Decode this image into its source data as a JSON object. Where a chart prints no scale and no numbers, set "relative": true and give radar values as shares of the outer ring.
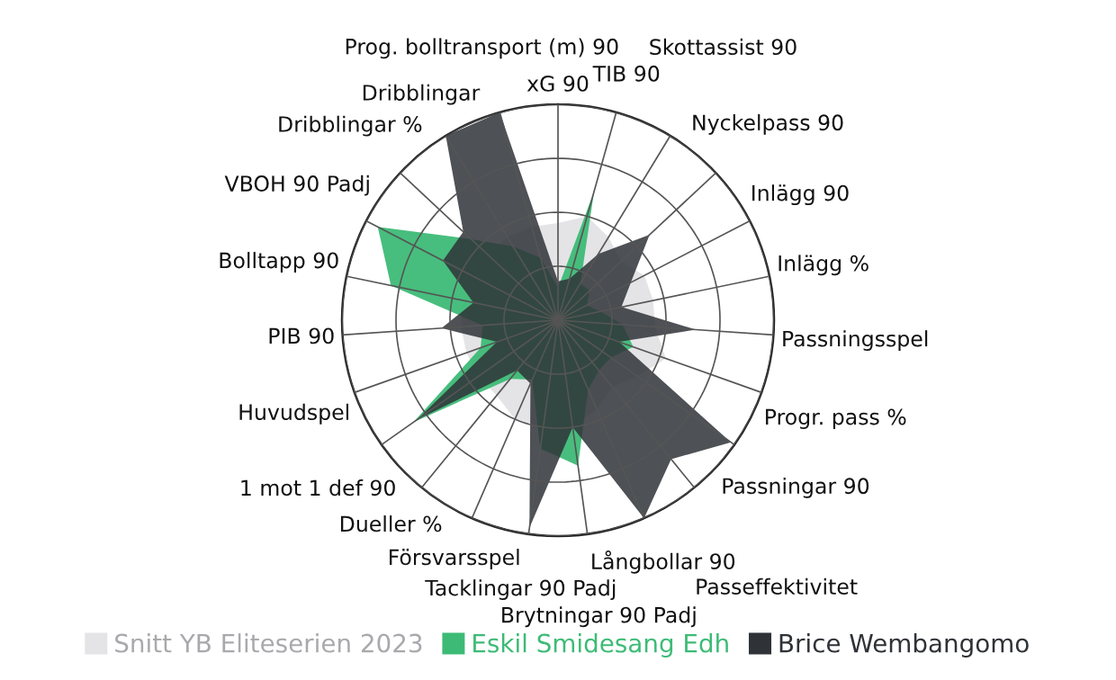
{
  "chart_data": {
    "type": "radar",
    "relative": true,
    "grid": true,
    "legend": "bottom",
    "categories": [
      "xG 90",
      "TIB 90",
      "Skottassist 90",
      "Nyckelpass 90",
      "Inlägg 90",
      "Inlägg %",
      "Passningsspel",
      "Progr. pass %",
      "Passningar 90",
      "Passeffektivitet",
      "Långbollar 90",
      "Brytningar 90 Padj",
      "Tacklingar 90 Padj",
      "Försvarsspel",
      "Dueller %",
      "1 mot 1 def 90",
      "Huvudspel",
      "PIB 90",
      "Bolltapp 90",
      "VBOH 90 Padj",
      "Dribblingar %",
      "Dribblingar",
      "Prog. bolltransport (m) 90"
    ],
    "series": [
      {
        "name": "Snitt YB Eliteserien 2023",
        "color": "#e4e4e6",
        "values": [
          0.45,
          0.5,
          0.45,
          0.4,
          0.45,
          0.45,
          0.45,
          0.53,
          0.45,
          0.4,
          0.45,
          0.5,
          0.5,
          0.5,
          0.45,
          0.45,
          0.45,
          0.45,
          0.45,
          0.45,
          0.45,
          0.45,
          0.45
        ]
      },
      {
        "name": "Eskil Smidesang Edh",
        "color": "#3dbb76",
        "values": [
          0.15,
          0.62,
          0.2,
          0.2,
          0.15,
          0.2,
          0.3,
          0.37,
          0.3,
          0.3,
          0.35,
          0.68,
          0.6,
          0.3,
          0.35,
          0.82,
          0.38,
          0.35,
          0.79,
          0.94,
          0.55,
          0.4,
          0.3
        ]
      },
      {
        "name": "Brice Wembangomo",
        "color": "#2f3237",
        "values": [
          0.18,
          0.2,
          0.36,
          0.58,
          0.38,
          0.3,
          0.64,
          0.3,
          0.98,
          0.83,
          1.0,
          0.5,
          0.97,
          0.32,
          0.3,
          0.8,
          0.3,
          0.54,
          0.4,
          0.6,
          0.6,
          1.0,
          1.0
        ]
      }
    ]
  }
}
